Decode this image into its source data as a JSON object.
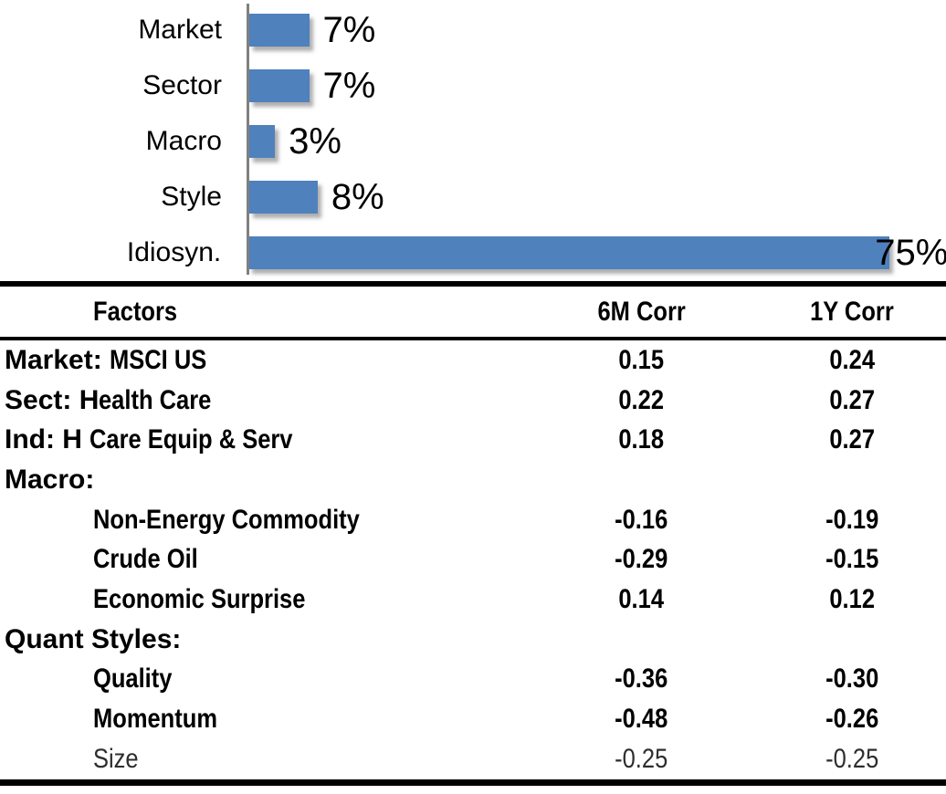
{
  "chart_data": {
    "type": "bar",
    "orientation": "horizontal",
    "title": "",
    "xlabel": "",
    "ylabel": "",
    "categories": [
      "Market",
      "Sector",
      "Macro",
      "Style",
      "Idiosyn."
    ],
    "values": [
      7,
      7,
      3,
      8,
      75
    ],
    "value_labels": [
      "7%",
      "7%",
      "3%",
      "8%",
      "75%"
    ],
    "xlim": [
      0,
      75
    ],
    "grid": false,
    "legend": false,
    "data_label_position": "outside-end",
    "bar_color": "#4F81BD",
    "axis_color": "#808080"
  },
  "table": {
    "columns": [
      "Factors",
      "6M Corr",
      "1Y Corr"
    ],
    "rows": [
      {
        "prefix": "Market:",
        "label": " MSCI US",
        "indent": false,
        "light": false,
        "cols": [
          "0.15",
          "0.24"
        ]
      },
      {
        "prefix": "Sect: H",
        "label": "ealth Care",
        "indent": false,
        "light": false,
        "cols": [
          "0.22",
          "0.27"
        ]
      },
      {
        "prefix": "Ind: H",
        "label": " Care Equip & Serv",
        "indent": false,
        "light": false,
        "cols": [
          "0.18",
          "0.27"
        ]
      },
      {
        "prefix": "Macro:",
        "label": "",
        "indent": false,
        "light": false,
        "cols": [
          "",
          ""
        ]
      },
      {
        "prefix": "",
        "label": "Non-Energy Commodity",
        "indent": true,
        "light": false,
        "cols": [
          "-0.16",
          "-0.19"
        ]
      },
      {
        "prefix": "",
        "label": "Crude Oil",
        "indent": true,
        "light": false,
        "cols": [
          "-0.29",
          "-0.15"
        ]
      },
      {
        "prefix": "",
        "label": "Economic Surprise",
        "indent": true,
        "light": false,
        "cols": [
          "0.14",
          "0.12"
        ]
      },
      {
        "prefix": "Quant Styles:",
        "label": "",
        "indent": false,
        "light": false,
        "cols": [
          "",
          ""
        ]
      },
      {
        "prefix": "",
        "label": "Quality",
        "indent": true,
        "light": false,
        "cols": [
          "-0.36",
          "-0.30"
        ]
      },
      {
        "prefix": "",
        "label": "Momentum",
        "indent": true,
        "light": false,
        "cols": [
          "-0.48",
          "-0.26"
        ]
      },
      {
        "prefix": "",
        "label": "Size",
        "indent": true,
        "light": true,
        "cols": [
          "-0.25",
          "-0.25"
        ]
      }
    ]
  }
}
